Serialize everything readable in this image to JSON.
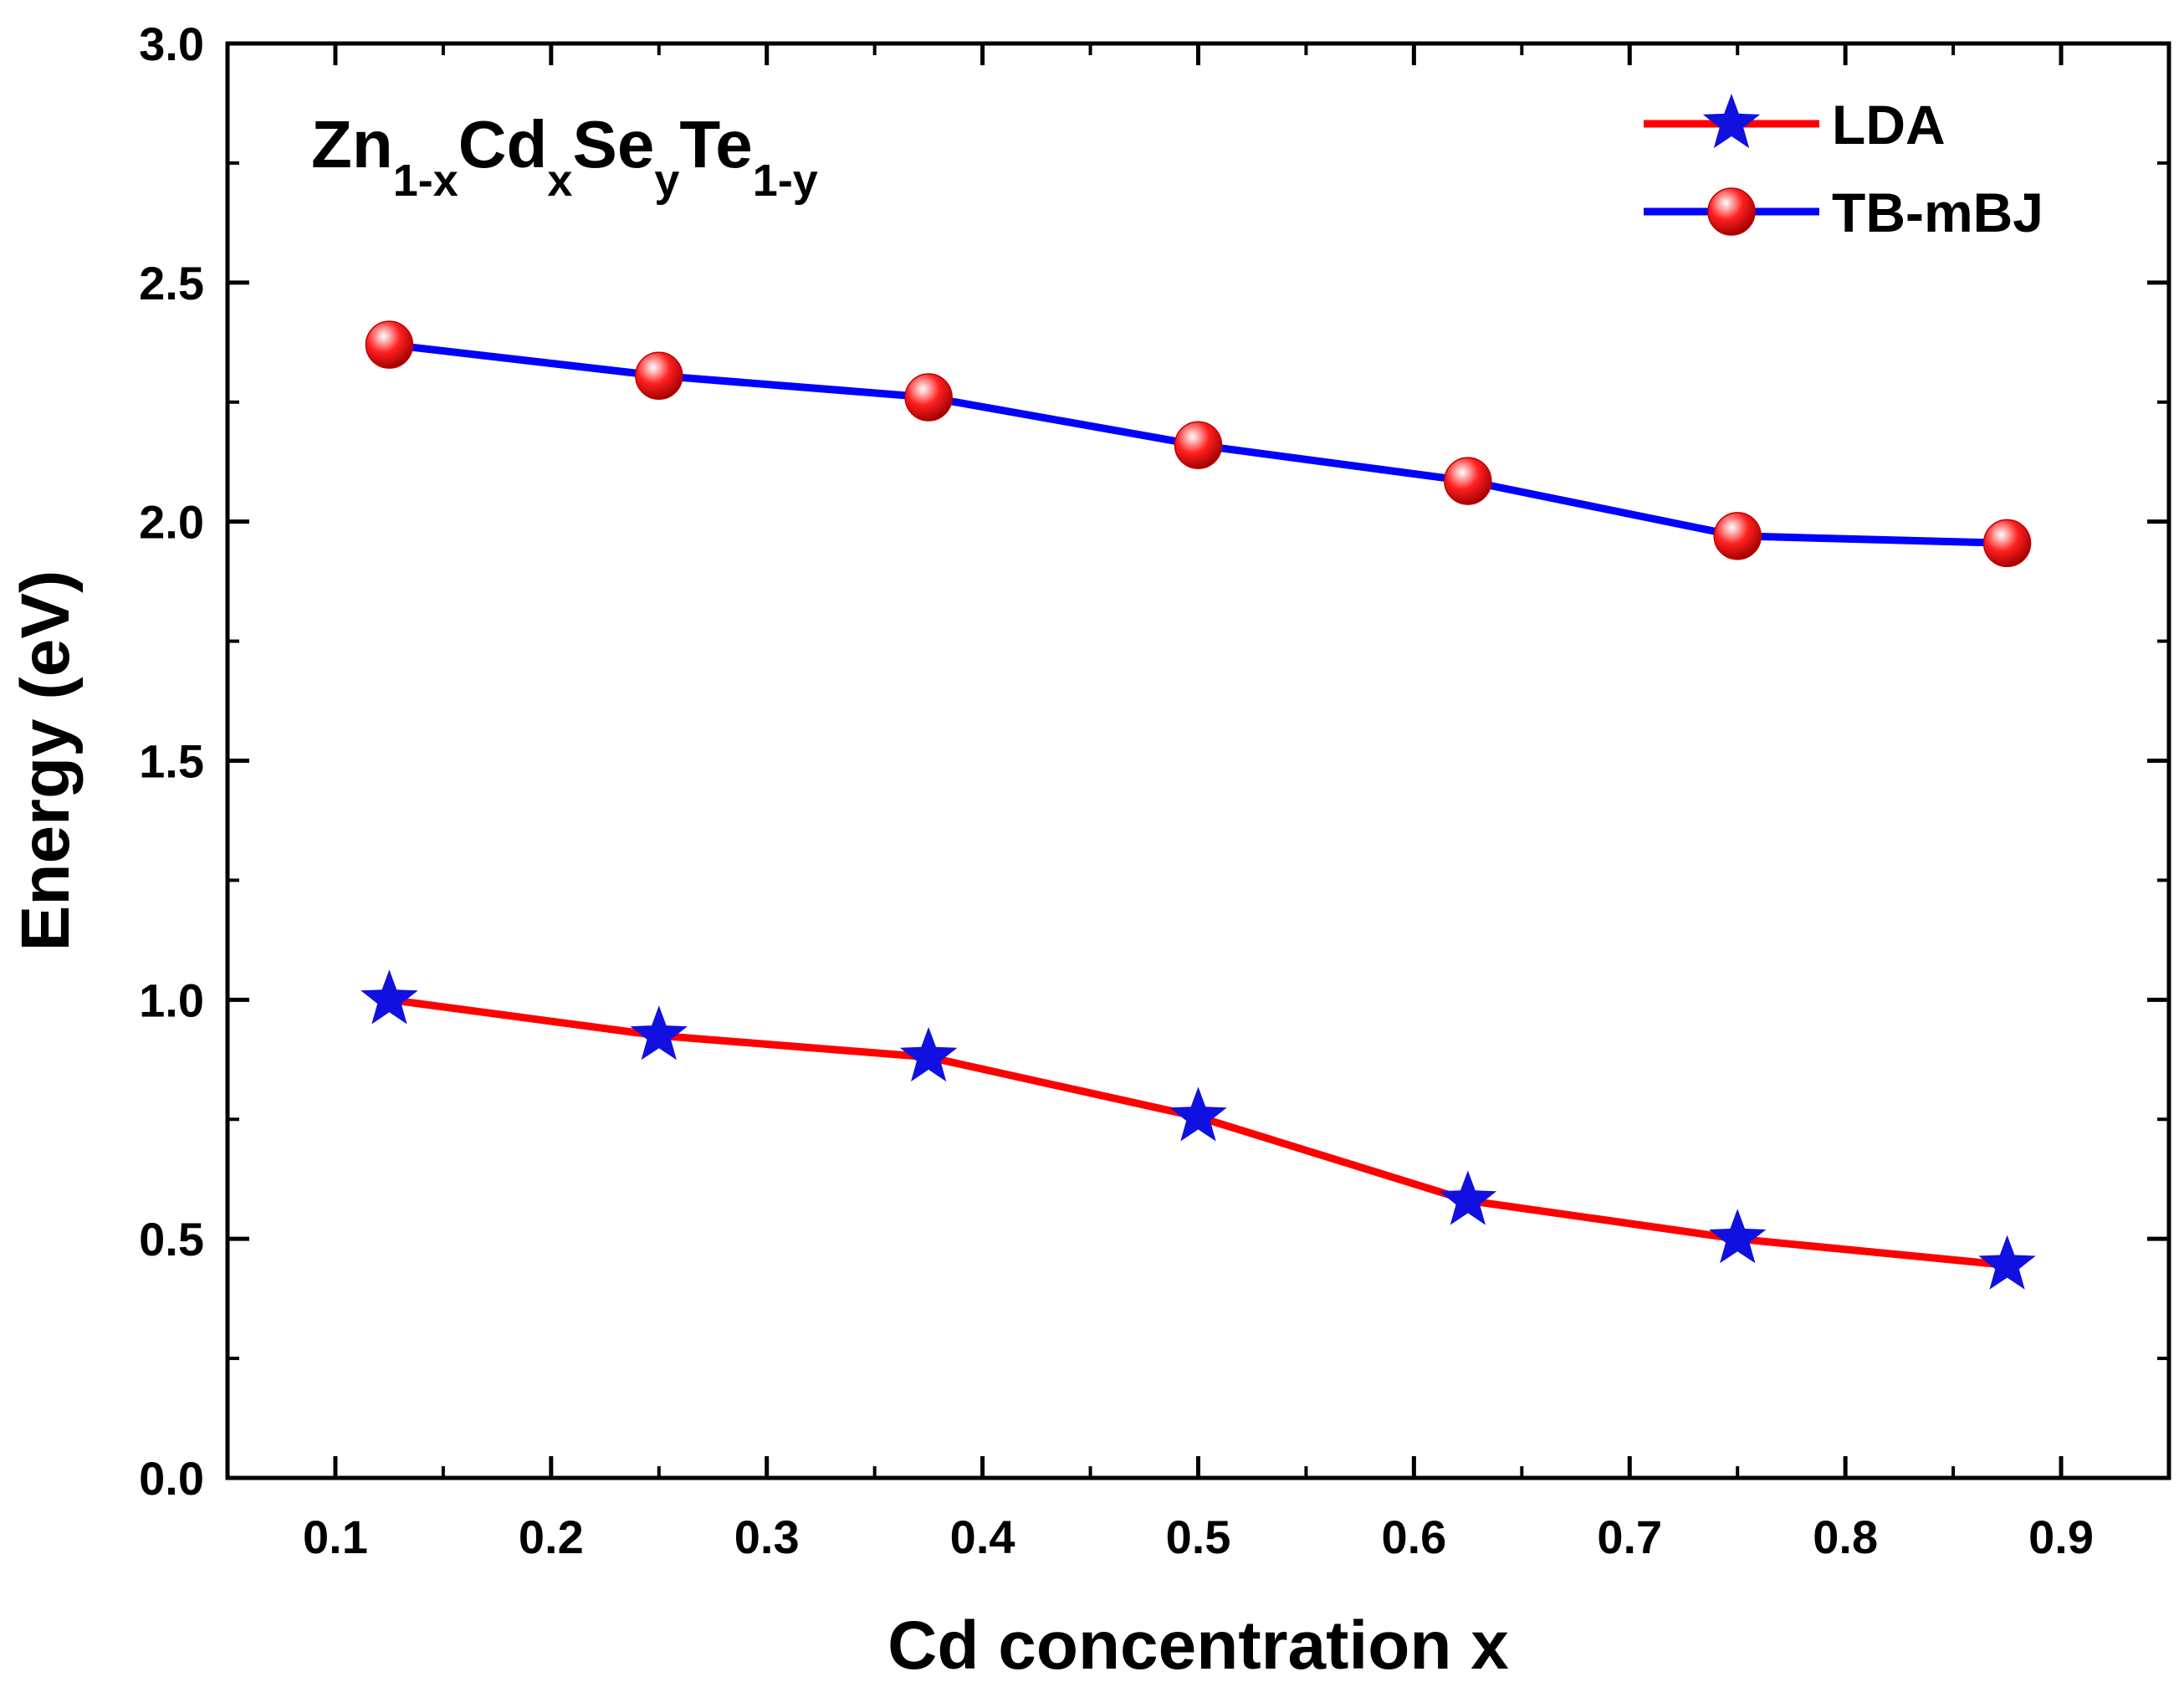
{
  "chart_data": {
    "type": "line",
    "title": "",
    "xlabel": "Cd concentration x",
    "ylabel": "Energy (eV)",
    "xlim": [
      0.05,
      0.95
    ],
    "ylim": [
      0.0,
      3.0
    ],
    "xticks": [
      0.1,
      0.2,
      0.3,
      0.4,
      0.5,
      0.6,
      0.7,
      0.8,
      0.9
    ],
    "xtick_labels": [
      "0.1",
      "0.2",
      "0.3",
      "0.4",
      "0.5",
      "0.6",
      "0.7",
      "0.8",
      "0.9"
    ],
    "yticks": [
      0.0,
      0.5,
      1.0,
      1.5,
      2.0,
      2.5,
      3.0
    ],
    "ytick_labels": [
      "0.0",
      "0.5",
      "1.0",
      "1.5",
      "2.0",
      "2.5",
      "3.0"
    ],
    "grid": false,
    "legend_position": "top-right",
    "annotation": {
      "parts": [
        {
          "text": "Zn",
          "sub": false
        },
        {
          "text": "1-x",
          "sub": true
        },
        {
          "text": "Cd",
          "sub": false
        },
        {
          "text": "x",
          "sub": true
        },
        {
          "text": "Se",
          "sub": false
        },
        {
          "text": "y",
          "sub": true
        },
        {
          "text": "Te",
          "sub": false
        },
        {
          "text": "1-y",
          "sub": true
        }
      ]
    },
    "x": [
      0.125,
      0.25,
      0.375,
      0.5,
      0.625,
      0.75,
      0.875
    ],
    "series": [
      {
        "name": "LDA",
        "line_color": "#ff0000",
        "marker": "star",
        "marker_color": "#1010e0",
        "values": [
          1.0,
          0.925,
          0.88,
          0.755,
          0.58,
          0.5,
          0.445
        ]
      },
      {
        "name": "TB-mBJ",
        "line_color": "#0000ff",
        "marker": "sphere",
        "marker_color": "#ff0000",
        "values": [
          2.37,
          2.305,
          2.26,
          2.16,
          2.085,
          1.97,
          1.955
        ]
      }
    ]
  }
}
